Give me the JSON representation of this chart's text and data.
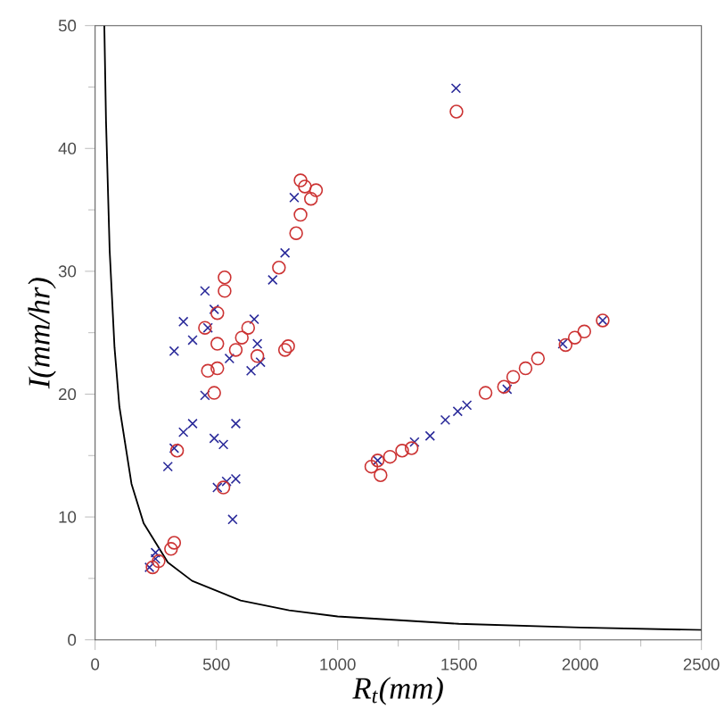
{
  "chart_data": {
    "type": "scatter",
    "xlabel": "R$_{t}$(mm)",
    "ylabel": "I(mm/hr)",
    "xlim": [
      0,
      2500
    ],
    "ylim": [
      0,
      50
    ],
    "xticks": [
      0,
      500,
      1000,
      1500,
      2000,
      2500
    ],
    "yticks": [
      0,
      10,
      20,
      30,
      40,
      50
    ],
    "series": [
      {
        "marker": "cross",
        "color": "#2b2b9a",
        "x": [
          1488,
          732,
          783,
          821,
          453,
          364,
          326,
          402,
          465,
          491,
          656,
          669,
          643,
          682,
          554,
          453,
          402,
          364,
          326,
          300,
          491,
          529,
          580,
          542,
          504,
          580,
          567,
          249,
          224,
          249,
          1317,
          1381,
          1444,
          1495,
          1533,
          1699,
          2093,
          1928,
          1165
        ],
        "values": [
          44.9,
          29.3,
          31.5,
          36,
          28.4,
          25.9,
          23.5,
          24.4,
          25.4,
          26.9,
          26.1,
          24.1,
          21.9,
          22.6,
          22.9,
          19.9,
          17.6,
          16.9,
          15.6,
          14.1,
          16.4,
          15.9,
          17.6,
          12.9,
          12.4,
          13.1,
          9.8,
          7.1,
          5.9,
          6.6,
          16.1,
          16.6,
          17.9,
          18.6,
          19.1,
          20.4,
          26,
          24.1,
          14.6
        ]
      },
      {
        "marker": "circle",
        "color": "#cc3333",
        "x": [
          1490,
          847,
          865,
          911,
          890,
          847,
          829,
          758,
          534,
          534,
          504,
          453,
          504,
          465,
          504,
          491,
          631,
          605,
          580,
          669,
          796,
          783,
          338,
          326,
          313,
          237,
          262,
          529,
          1139,
          1177,
          1165,
          1216,
          1266,
          1305,
          1610,
          1686,
          1724,
          1775,
          1826,
          1940,
          1978,
          2017,
          2093
        ],
        "values": [
          43,
          37.4,
          36.9,
          36.6,
          35.9,
          34.6,
          33.1,
          30.3,
          29.5,
          28.4,
          26.6,
          25.4,
          24.1,
          21.9,
          22.1,
          20.1,
          25.4,
          24.6,
          23.6,
          23.1,
          23.9,
          23.6,
          15.4,
          7.9,
          7.4,
          5.9,
          6.4,
          12.4,
          14.1,
          13.4,
          14.6,
          14.9,
          15.4,
          15.6,
          20.1,
          20.6,
          21.4,
          22.1,
          22.9,
          24,
          24.6,
          25.1,
          26
        ]
      },
      {
        "type": "line",
        "marker": "none",
        "color": "#000000",
        "x": [
          38,
          45,
          60,
          80,
          100,
          150,
          200,
          300,
          400,
          600,
          800,
          1000,
          1500,
          2000,
          2500
        ],
        "values": [
          50,
          42.2,
          31.7,
          23.8,
          19,
          12.7,
          9.5,
          6.3,
          4.8,
          3.2,
          2.4,
          1.9,
          1.3,
          1,
          0.8
        ]
      }
    ]
  }
}
